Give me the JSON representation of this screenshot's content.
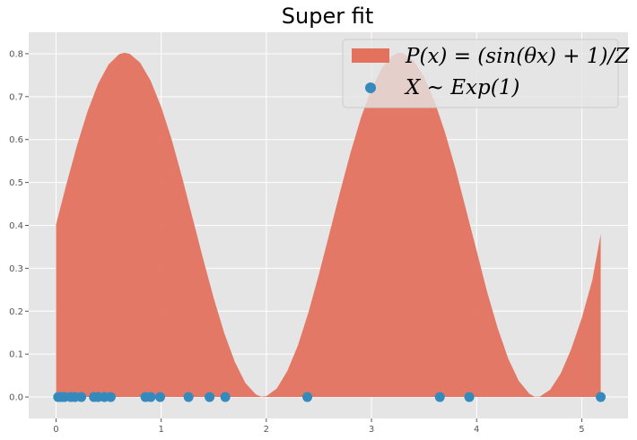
{
  "chart_data": {
    "type": "area",
    "title": "Super fit",
    "xlabel": "",
    "ylabel": "",
    "xlim": [
      -0.26,
      5.44
    ],
    "ylim": [
      -0.05,
      0.85
    ],
    "xticks": [
      "0",
      "1",
      "2",
      "3",
      "4",
      "5"
    ],
    "yticks": [
      "0.0",
      "0.1",
      "0.2",
      "0.3",
      "0.4",
      "0.5",
      "0.6",
      "0.7",
      "0.8"
    ],
    "grid": true,
    "legend_position": "top-right",
    "series": [
      {
        "name": "P(x) = (sin(θx) + 1)/Z",
        "type": "area",
        "color": "#e2725e",
        "x": [
          0.0,
          0.1,
          0.2,
          0.3,
          0.4,
          0.5,
          0.6,
          0.65,
          0.7,
          0.8,
          0.9,
          1.0,
          1.1,
          1.2,
          1.3,
          1.4,
          1.5,
          1.6,
          1.7,
          1.8,
          1.9,
          1.95,
          2.0,
          2.1,
          2.2,
          2.3,
          2.4,
          2.5,
          2.6,
          2.7,
          2.8,
          2.9,
          3.0,
          3.1,
          3.2,
          3.25,
          3.3,
          3.4,
          3.5,
          3.6,
          3.7,
          3.8,
          3.9,
          4.0,
          4.1,
          4.2,
          4.3,
          4.4,
          4.5,
          4.55,
          4.6,
          4.7,
          4.8,
          4.9,
          5.0,
          5.1,
          5.18
        ],
        "y": [
          0.402,
          0.497,
          0.587,
          0.666,
          0.73,
          0.775,
          0.799,
          0.802,
          0.8,
          0.779,
          0.737,
          0.676,
          0.6,
          0.511,
          0.416,
          0.321,
          0.23,
          0.149,
          0.082,
          0.033,
          0.006,
          0.001,
          0.002,
          0.02,
          0.061,
          0.12,
          0.197,
          0.286,
          0.381,
          0.477,
          0.569,
          0.651,
          0.718,
          0.767,
          0.796,
          0.802,
          0.801,
          0.784,
          0.746,
          0.689,
          0.616,
          0.531,
          0.436,
          0.341,
          0.245,
          0.161,
          0.09,
          0.038,
          0.008,
          0.001,
          0.001,
          0.017,
          0.055,
          0.112,
          0.184,
          0.272,
          0.379
        ]
      },
      {
        "name": "X ~ Exp(1)",
        "type": "scatter",
        "color": "#348abd",
        "x": [
          0.02,
          0.05,
          0.08,
          0.14,
          0.18,
          0.24,
          0.36,
          0.4,
          0.46,
          0.52,
          0.85,
          0.9,
          0.99,
          1.26,
          1.46,
          1.61,
          2.39,
          3.65,
          3.93,
          5.18
        ],
        "y": [
          0,
          0,
          0,
          0,
          0,
          0,
          0,
          0,
          0,
          0,
          0,
          0,
          0,
          0,
          0,
          0,
          0,
          0,
          0,
          0
        ]
      }
    ]
  }
}
